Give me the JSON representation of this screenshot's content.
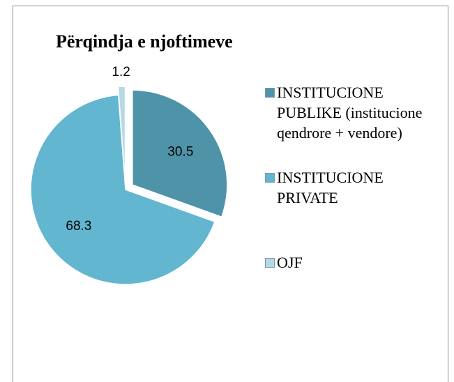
{
  "chart_data": {
    "type": "pie",
    "title": "Përqindja e njoftimeve",
    "categories": [
      "INSTITUCIONE PUBLIKE (institucione qendrore + vendore)",
      "INSTITUCIONE PRIVATE",
      "OJF"
    ],
    "values": [
      30.5,
      68.3,
      1.2
    ],
    "colors": [
      "#4f93a8",
      "#62b6d0",
      "#b5dae5"
    ]
  }
}
